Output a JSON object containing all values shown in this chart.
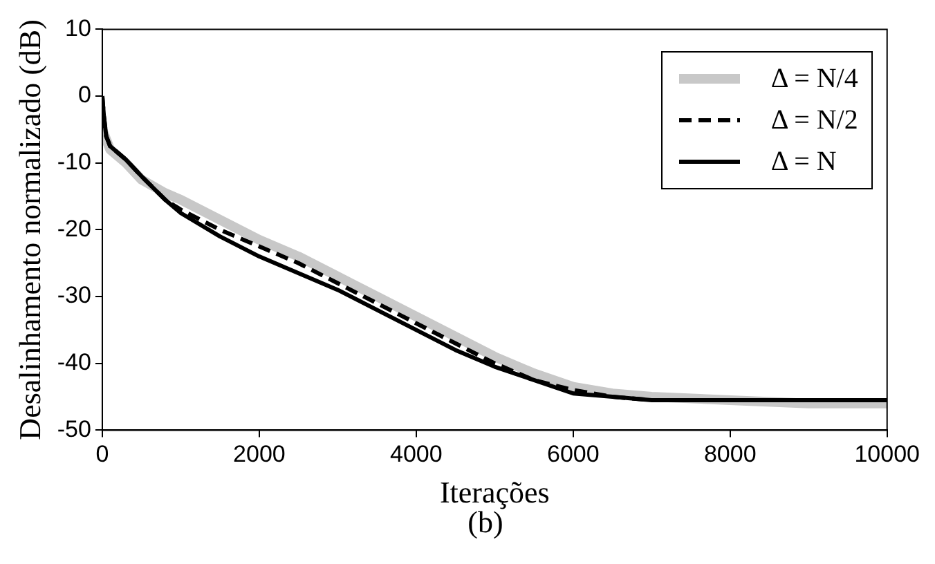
{
  "chart_data": {
    "type": "line",
    "xlabel": "Iterações",
    "ylabel": "Desalinhamento normalizado (dB)",
    "annotations": [
      "(b)"
    ],
    "xlim": [
      0,
      10000
    ],
    "xticks": [
      0,
      2000,
      4000,
      6000,
      8000,
      10000
    ],
    "ylim": [
      -50,
      10
    ],
    "yticks": [
      -50,
      -40,
      -30,
      -20,
      -10,
      0,
      10
    ],
    "grid": false,
    "legend": "top right",
    "marker": "none",
    "series": [
      {
        "name": "Δ = N/4",
        "color": "#c8c8c8",
        "line_style": "solid",
        "x": [
          0,
          100,
          300,
          500,
          800,
          1000,
          1500,
          2000,
          2500,
          3000,
          3500,
          4000,
          4500,
          5000,
          5500,
          6000,
          6500,
          7000,
          8000,
          9000,
          10000
        ],
        "values": [
          -5,
          -8,
          -10,
          -12.5,
          -14.5,
          -15.5,
          -18.5,
          -21.5,
          -24,
          -27,
          -30,
          -33,
          -36,
          -39,
          -41.5,
          -43.5,
          -44.5,
          -45,
          -45.5,
          -46,
          -46
        ]
      },
      {
        "name": "Δ = N/2",
        "color": "#000000",
        "line_style": "dashed",
        "x": [
          0,
          20,
          50,
          100,
          300,
          500,
          800,
          1000,
          1500,
          2000,
          2500,
          3000,
          3500,
          4000,
          4500,
          5000,
          5500,
          6000,
          6500,
          7000,
          8000,
          9000,
          10000
        ],
        "values": [
          0,
          -3,
          -6,
          -7.5,
          -9.5,
          -12,
          -15.5,
          -17,
          -20,
          -22.5,
          -25,
          -28,
          -31,
          -34,
          -37,
          -40,
          -42.5,
          -44,
          -45,
          -45.5,
          -45.5,
          -45.5,
          -45.5
        ]
      },
      {
        "name": "Δ = N",
        "color": "#000000",
        "line_style": "solid",
        "x": [
          0,
          20,
          50,
          100,
          300,
          500,
          800,
          1000,
          1500,
          2000,
          2500,
          3000,
          3500,
          4000,
          4500,
          5000,
          5500,
          6000,
          6500,
          7000,
          8000,
          9000,
          10000
        ],
        "values": [
          0,
          -3,
          -6,
          -7.5,
          -9.5,
          -12,
          -15.5,
          -17.5,
          -21,
          -24,
          -26.5,
          -29,
          -32,
          -35,
          -38,
          -40.5,
          -42.5,
          -44.5,
          -45,
          -45.5,
          -45.5,
          -45.5,
          -45.5
        ]
      }
    ]
  }
}
